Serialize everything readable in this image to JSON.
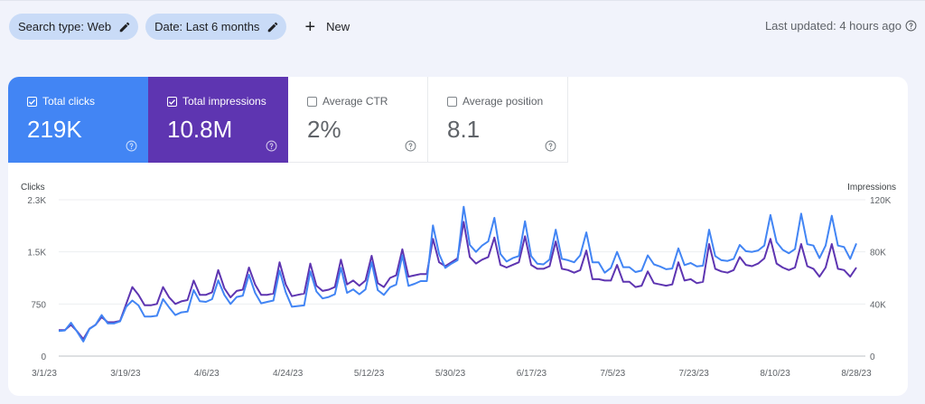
{
  "filters": {
    "search_type": "Search type: Web",
    "date": "Date: Last 6 months",
    "new_label": "New"
  },
  "last_updated": "Last updated: 4 hours ago",
  "metrics": [
    {
      "label": "Total clicks",
      "value": "219K",
      "checked": true
    },
    {
      "label": "Total impressions",
      "value": "10.8M",
      "checked": true
    },
    {
      "label": "Average CTR",
      "value": "2%",
      "checked": false
    },
    {
      "label": "Average position",
      "value": "8.1",
      "checked": false
    }
  ],
  "colors": {
    "clicks": "#4285f4",
    "impressions": "#5e35b1",
    "chip": "#c9dbf7",
    "background": "#f1f3fb"
  },
  "chart_data": {
    "type": "line",
    "y_left_label": "Clicks",
    "y_right_label": "Impressions",
    "y_left_ticks": [
      "0",
      "750",
      "1.5K",
      "2.3K"
    ],
    "y_right_ticks": [
      "0",
      "40K",
      "80K",
      "120K"
    ],
    "y_left_range": [
      0,
      2250
    ],
    "y_right_range": [
      0,
      120000
    ],
    "x_ticks": [
      "3/1/23",
      "3/19/23",
      "4/6/23",
      "4/24/23",
      "5/12/23",
      "5/30/23",
      "6/17/23",
      "7/5/23",
      "7/23/23",
      "8/10/23",
      "8/28/23"
    ],
    "grid": true,
    "series": [
      {
        "name": "Clicks",
        "color": "#4285f4",
        "axis": "left",
        "values": [
          360,
          370,
          480,
          350,
          210,
          390,
          450,
          590,
          470,
          470,
          500,
          710,
          800,
          730,
          570,
          570,
          580,
          820,
          700,
          590,
          630,
          640,
          950,
          790,
          780,
          820,
          1090,
          880,
          750,
          850,
          870,
          1170,
          910,
          760,
          780,
          800,
          1230,
          920,
          710,
          720,
          730,
          1220,
          930,
          830,
          850,
          890,
          1270,
          910,
          960,
          890,
          960,
          1350,
          950,
          880,
          990,
          1030,
          1450,
          1010,
          1040,
          1080,
          1080,
          1880,
          1470,
          1270,
          1330,
          1380,
          2150,
          1600,
          1500,
          1590,
          1650,
          1990,
          1470,
          1360,
          1410,
          1440,
          1940,
          1440,
          1330,
          1320,
          1390,
          1820,
          1400,
          1380,
          1350,
          1450,
          1780,
          1350,
          1350,
          1200,
          1270,
          1500,
          1280,
          1280,
          1210,
          1230,
          1450,
          1320,
          1290,
          1250,
          1260,
          1550,
          1310,
          1340,
          1290,
          1300,
          1820,
          1440,
          1380,
          1370,
          1400,
          1600,
          1510,
          1500,
          1520,
          1590,
          2030,
          1640,
          1530,
          1480,
          1540,
          2050,
          1610,
          1590,
          1410,
          1590,
          2020,
          1590,
          1570,
          1400,
          1620
        ]
      },
      {
        "name": "Impressions",
        "color": "#5e35b1",
        "axis": "right",
        "values": [
          20000,
          20000,
          24000,
          19000,
          13000,
          21000,
          24000,
          30000,
          26000,
          26000,
          27000,
          40000,
          53000,
          47000,
          39000,
          39000,
          40000,
          53000,
          45000,
          40000,
          42000,
          43000,
          58000,
          47000,
          47000,
          49000,
          66000,
          52000,
          45000,
          50000,
          51000,
          68000,
          55000,
          47000,
          47000,
          48000,
          72000,
          55000,
          46000,
          47000,
          48000,
          71000,
          54000,
          50000,
          51000,
          53000,
          74000,
          55000,
          58000,
          54000,
          58000,
          77000,
          56000,
          53000,
          60000,
          62000,
          82000,
          61000,
          62000,
          63000,
          63000,
          90000,
          72000,
          69000,
          72000,
          75000,
          103000,
          76000,
          71000,
          74000,
          76000,
          91000,
          70000,
          68000,
          70000,
          72000,
          92000,
          70000,
          67000,
          67000,
          69000,
          88000,
          67000,
          66000,
          64000,
          66000,
          81000,
          59000,
          59000,
          58000,
          58000,
          70000,
          57000,
          57000,
          53000,
          54000,
          65000,
          56000,
          55000,
          54000,
          55000,
          72000,
          58000,
          59000,
          56000,
          57000,
          86000,
          67000,
          65000,
          64000,
          66000,
          76000,
          70000,
          69000,
          71000,
          75000,
          90000,
          71000,
          68000,
          66000,
          68000,
          86000,
          69000,
          67000,
          61000,
          68000,
          86000,
          67000,
          66000,
          61000,
          68000
        ]
      }
    ]
  }
}
